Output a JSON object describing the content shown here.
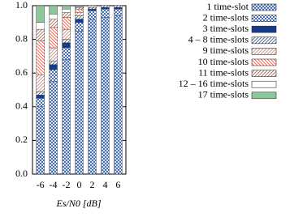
{
  "chart_data": {
    "type": "bar",
    "stacked": true,
    "x_label": "Es/N0 [dB]",
    "x": [
      -6,
      -4,
      -2,
      0,
      2,
      4,
      6
    ],
    "xlim": [
      -7.2,
      7.2
    ],
    "xticks": [
      -6,
      -4,
      -2,
      0,
      2,
      4,
      6
    ],
    "ylim": [
      0,
      1
    ],
    "yticks": [
      {
        "value": 0,
        "label": "0.0"
      },
      {
        "value": 0.2,
        "label": "0.2"
      },
      {
        "value": 0.4,
        "label": "0.4"
      },
      {
        "value": 0.6,
        "label": "0.6"
      },
      {
        "value": 0.8,
        "label": "0.8"
      },
      {
        "value": 1,
        "label": "1.0"
      }
    ],
    "series": [
      {
        "name": "1 time-slot",
        "color": "#2855a8",
        "values": [
          0.4,
          0.55,
          0.68,
          0.85,
          0.92,
          0.93,
          0.94
        ]
      },
      {
        "name": "2 time-slots",
        "color": "#3a6cc8",
        "values": [
          0.05,
          0.07,
          0.07,
          0.05,
          0.05,
          0.05,
          0.04
        ]
      },
      {
        "name": "3 time-slots",
        "color": "#143c8c",
        "values": [
          0.02,
          0.03,
          0.03,
          0.02,
          0.01,
          0.01,
          0.01
        ]
      },
      {
        "name": "4 – 8 time-slots",
        "color": "#2855a8",
        "values": [
          0.02,
          0.02,
          0.02,
          0.02,
          0.01,
          0.01,
          0.01
        ]
      },
      {
        "name": "9 time-slots",
        "color": "#e07a6a",
        "values": [
          0.1,
          0.08,
          0.06,
          0.02,
          0.01,
          0,
          0
        ]
      },
      {
        "name": "10 time-slots",
        "color": "#e05a48",
        "values": [
          0.2,
          0.12,
          0.07,
          0.02,
          0,
          0,
          0
        ]
      },
      {
        "name": "11 time-slots",
        "color": "#d0503c",
        "values": [
          0.07,
          0.05,
          0.03,
          0.01,
          0,
          0,
          0
        ]
      },
      {
        "name": "12 – 16 time-slots",
        "color": "#ffffff",
        "values": [
          0.04,
          0.03,
          0.02,
          0.005,
          0,
          0,
          0
        ]
      },
      {
        "name": "17 time-slots",
        "color": "#8cc79a",
        "values": [
          0.1,
          0.05,
          0.02,
          0.005,
          0,
          0,
          0
        ]
      }
    ]
  }
}
